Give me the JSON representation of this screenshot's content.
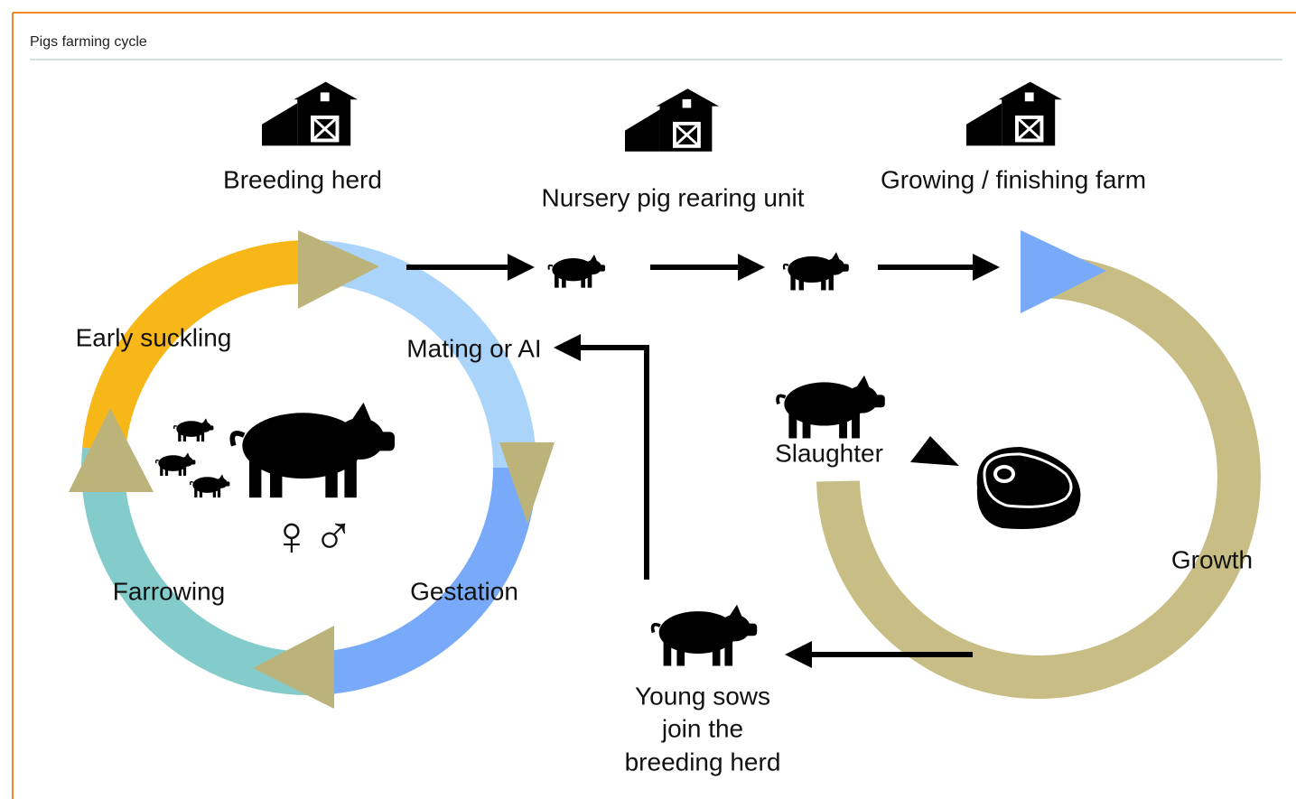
{
  "header": {
    "title": "Pigs farming cycle"
  },
  "labels": {
    "breeding_herd": "Breeding herd",
    "nursery": "Nursery pig rearing unit",
    "growing": "Growing / finishing farm",
    "early_suckling": "Early suckling",
    "mating": "Mating or AI",
    "farrowing": "Farrowing",
    "gestation": "Gestation",
    "slaughter": "Slaughter",
    "growth": "Growth",
    "symbols": "♀♂",
    "young_sows": [
      "Young sows",
      "join the",
      "breeding herd"
    ]
  }
}
